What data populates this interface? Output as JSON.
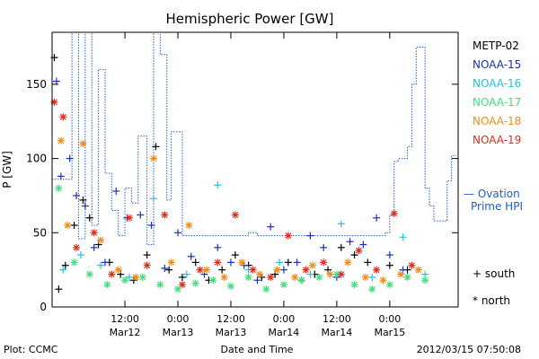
{
  "chart_data": {
    "type": "scatter",
    "title": "Hemispheric Power [GW]",
    "xlabel": "Date and Time",
    "ylabel": "P [GW]",
    "xlim": [
      "2012-03-11 19:30",
      "2012-03-15 15:30"
    ],
    "ylim": [
      0,
      185
    ],
    "grid": false,
    "y_ticks": [
      0,
      50,
      100,
      150
    ],
    "x_ticks": [
      {
        "t": "2012-03-12 12:00",
        "time": "12:00",
        "date": "Mar12"
      },
      {
        "t": "2012-03-13 00:00",
        "time": "0:00",
        "date": "Mar13"
      },
      {
        "t": "2012-03-13 12:00",
        "time": "12:00",
        "date": "Mar13"
      },
      {
        "t": "2012-03-14 00:00",
        "time": "0:00",
        "date": "Mar14"
      },
      {
        "t": "2012-03-14 12:00",
        "time": "12:00",
        "date": "Mar14"
      },
      {
        "t": "2012-03-15 00:00",
        "time": "0:00",
        "date": "Mar15"
      }
    ],
    "legend_placement": "right",
    "legend": [
      {
        "name": "METP-02",
        "color": "#000000"
      },
      {
        "name": "NOAA-15",
        "color": "#1a2fb8"
      },
      {
        "name": "NOAA-16",
        "color": "#22c4d8"
      },
      {
        "name": "NOAA-17",
        "color": "#3ee07a"
      },
      {
        "name": "NOAA-18",
        "color": "#ee8c1a"
      },
      {
        "name": "NOAA-19",
        "color": "#e02a1a"
      }
    ],
    "ovation_label_1": "— Ovation",
    "ovation_label_2": "Prime HPI",
    "ovation_color": "#1a5fd0",
    "marker_legend": [
      {
        "symbol": "+",
        "label": "south"
      },
      {
        "symbol": "*",
        "label": "north"
      }
    ],
    "ovation_series": {
      "name": "Ovation Prime HPI",
      "x": [
        "2012-03-11 19:30",
        "2012-03-11 23:30",
        "2012-03-12 00:00",
        "2012-03-12 01:30",
        "2012-03-12 03:00",
        "2012-03-12 04:30",
        "2012-03-12 06:00",
        "2012-03-12 07:30",
        "2012-03-12 09:00",
        "2012-03-12 10:30",
        "2012-03-12 12:00",
        "2012-03-12 13:30",
        "2012-03-12 15:00",
        "2012-03-12 17:00",
        "2012-03-12 18:30",
        "2012-03-12 20:00",
        "2012-03-12 21:30",
        "2012-03-12 22:30",
        "2012-03-13 01:00",
        "2012-03-13 06:00",
        "2012-03-13 12:00",
        "2012-03-13 14:00",
        "2012-03-13 16:00",
        "2012-03-13 18:00",
        "2012-03-14 00:00",
        "2012-03-14 06:00",
        "2012-03-14 12:00",
        "2012-03-14 18:00",
        "2012-03-14 21:00",
        "2012-03-14 22:00",
        "2012-03-14 23:00",
        "2012-03-15 00:00",
        "2012-03-15 01:00",
        "2012-03-15 02:00",
        "2012-03-15 03:00",
        "2012-03-15 04:00",
        "2012-03-15 05:00",
        "2012-03-15 06:00",
        "2012-03-15 07:00",
        "2012-03-15 08:00",
        "2012-03-15 09:00",
        "2012-03-15 10:00",
        "2012-03-15 11:00",
        "2012-03-15 12:00",
        "2012-03-15 13:00",
        "2012-03-15 14:00",
        "2012-03-15 15:00"
      ],
      "values": [
        86,
        86,
        185,
        46,
        185,
        55,
        160,
        90,
        65,
        48,
        80,
        70,
        115,
        42,
        185,
        170,
        72,
        118,
        48,
        48,
        48,
        48,
        50,
        48,
        48,
        48,
        48,
        48,
        48,
        48,
        50,
        62,
        98,
        100,
        100,
        108,
        150,
        175,
        175,
        80,
        68,
        58,
        58,
        58,
        85,
        102,
        102
      ]
    },
    "series": [
      {
        "name": "METP-02",
        "marker": "+",
        "x": [
          "2012-03-11 20:00",
          "2012-03-11 21:00",
          "2012-03-11 22:30",
          "2012-03-12 00:30",
          "2012-03-12 02:30",
          "2012-03-12 04:00",
          "2012-03-12 06:00",
          "2012-03-12 08:30",
          "2012-03-12 11:00",
          "2012-03-12 14:00",
          "2012-03-12 17:00",
          "2012-03-12 19:00",
          "2012-03-12 22:00",
          "2012-03-13 01:00",
          "2012-03-13 04:00",
          "2012-03-13 07:00",
          "2012-03-13 10:00",
          "2012-03-13 13:00",
          "2012-03-13 16:00",
          "2012-03-13 19:00",
          "2012-03-13 22:00",
          "2012-03-14 01:00",
          "2012-03-14 04:00",
          "2012-03-14 07:00",
          "2012-03-14 10:00",
          "2012-03-14 13:00",
          "2012-03-14 16:00",
          "2012-03-14 19:00",
          "2012-03-15 00:00",
          "2012-03-15 04:00"
        ],
        "values": [
          168,
          12,
          28,
          55,
          72,
          60,
          42,
          30,
          22,
          18,
          35,
          108,
          25,
          20,
          30,
          18,
          25,
          35,
          28,
          20,
          22,
          30,
          18,
          22,
          25,
          40,
          35,
          30,
          28,
          25
        ]
      },
      {
        "name": "NOAA-15",
        "marker": "+",
        "x": [
          "2012-03-11 20:30",
          "2012-03-11 21:30",
          "2012-03-11 23:30",
          "2012-03-12 01:00",
          "2012-03-12 03:00",
          "2012-03-12 05:00",
          "2012-03-12 07:30",
          "2012-03-12 10:00",
          "2012-03-12 12:30",
          "2012-03-12 15:30",
          "2012-03-12 18:00",
          "2012-03-12 21:00",
          "2012-03-13 00:00",
          "2012-03-13 03:00",
          "2012-03-13 06:00",
          "2012-03-13 09:00",
          "2012-03-13 12:00",
          "2012-03-13 15:00",
          "2012-03-13 18:00",
          "2012-03-13 21:00",
          "2012-03-14 00:00",
          "2012-03-14 03:00",
          "2012-03-14 06:00",
          "2012-03-14 09:00",
          "2012-03-14 12:00",
          "2012-03-14 15:00",
          "2012-03-14 18:00",
          "2012-03-14 21:00",
          "2012-03-15 00:00",
          "2012-03-15 03:00"
        ],
        "values": [
          152,
          88,
          100,
          75,
          68,
          40,
          30,
          78,
          60,
          62,
          55,
          26,
          50,
          34,
          22,
          40,
          30,
          28,
          18,
          54,
          25,
          30,
          48,
          40,
          20,
          44,
          42,
          60,
          35,
          25
        ]
      },
      {
        "name": "NOAA-16",
        "marker": "+",
        "x": [
          "2012-03-11 22:00",
          "2012-03-12 02:00",
          "2012-03-12 06:30",
          "2012-03-12 13:00",
          "2012-03-12 18:30",
          "2012-03-13 02:00",
          "2012-03-13 09:00",
          "2012-03-13 16:00",
          "2012-03-13 23:00",
          "2012-03-14 06:00",
          "2012-03-14 13:00",
          "2012-03-14 20:00",
          "2012-03-15 03:00",
          "2012-03-15 08:00"
        ],
        "values": [
          25,
          35,
          28,
          20,
          73,
          22,
          82,
          25,
          30,
          22,
          56,
          20,
          47,
          22
        ]
      },
      {
        "name": "NOAA-17",
        "marker": "*",
        "x": [
          "2012-03-11 21:00",
          "2012-03-12 00:30",
          "2012-03-12 04:00",
          "2012-03-12 08:00",
          "2012-03-12 12:00",
          "2012-03-12 16:00",
          "2012-03-12 20:00",
          "2012-03-13 00:00",
          "2012-03-13 04:00",
          "2012-03-13 08:00",
          "2012-03-13 12:00",
          "2012-03-13 16:00",
          "2012-03-13 20:00",
          "2012-03-14 00:00",
          "2012-03-14 04:00",
          "2012-03-14 08:00",
          "2012-03-14 12:00",
          "2012-03-14 16:00",
          "2012-03-14 20:00",
          "2012-03-15 00:00",
          "2012-03-15 04:00",
          "2012-03-15 08:00"
        ],
        "values": [
          80,
          30,
          22,
          15,
          18,
          20,
          15,
          12,
          16,
          18,
          14,
          20,
          12,
          15,
          18,
          20,
          22,
          15,
          12,
          15,
          20,
          18
        ]
      },
      {
        "name": "NOAA-18",
        "marker": "*",
        "x": [
          "2012-03-11 21:30",
          "2012-03-11 23:00",
          "2012-03-12 02:30",
          "2012-03-12 06:30",
          "2012-03-12 10:30",
          "2012-03-12 14:30",
          "2012-03-12 18:30",
          "2012-03-12 22:30",
          "2012-03-13 02:30",
          "2012-03-13 06:30",
          "2012-03-13 10:30",
          "2012-03-13 14:30",
          "2012-03-13 18:30",
          "2012-03-13 22:30",
          "2012-03-14 02:30",
          "2012-03-14 06:30",
          "2012-03-14 10:30",
          "2012-03-14 14:30",
          "2012-03-14 18:30",
          "2012-03-14 22:30",
          "2012-03-15 02:30",
          "2012-03-15 06:30"
        ],
        "values": [
          112,
          55,
          110,
          45,
          25,
          20,
          100,
          30,
          55,
          25,
          20,
          30,
          22,
          25,
          20,
          28,
          22,
          30,
          20,
          18,
          22,
          25
        ]
      },
      {
        "name": "NOAA-19",
        "marker": "*",
        "x": [
          "2012-03-11 20:00",
          "2012-03-11 22:00",
          "2012-03-12 01:00",
          "2012-03-12 05:00",
          "2012-03-12 09:00",
          "2012-03-12 13:00",
          "2012-03-12 17:00",
          "2012-03-12 21:00",
          "2012-03-13 01:00",
          "2012-03-13 05:00",
          "2012-03-13 09:00",
          "2012-03-13 13:00",
          "2012-03-13 17:00",
          "2012-03-13 21:00",
          "2012-03-14 01:00",
          "2012-03-14 05:00",
          "2012-03-14 09:00",
          "2012-03-14 13:00",
          "2012-03-14 17:00",
          "2012-03-14 21:00",
          "2012-03-15 01:00",
          "2012-03-15 05:00"
        ],
        "values": [
          138,
          128,
          40,
          50,
          22,
          60,
          28,
          62,
          15,
          25,
          30,
          62,
          25,
          20,
          48,
          25,
          30,
          22,
          38,
          25,
          63,
          28
        ]
      }
    ]
  },
  "footer": {
    "plot_credit": "Plot: CCMC",
    "timestamp": "2012/03/15 07:50:08"
  }
}
